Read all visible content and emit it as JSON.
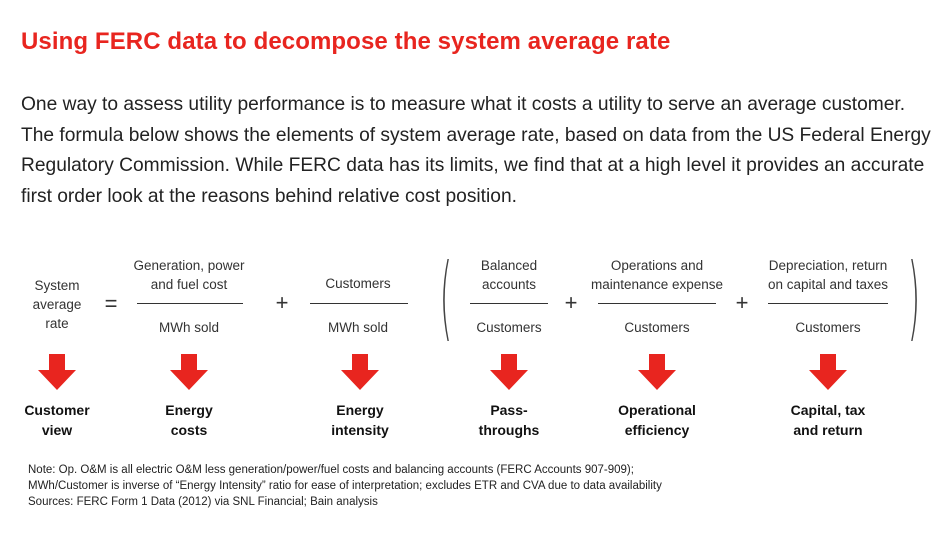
{
  "title": "Using FERC data to decompose the system average rate",
  "intro": "One way to assess utility performance is to measure what it costs a utility to serve an average customer. The formula below shows the elements of system average rate, based on data from the US Federal Energy Regulatory Commission. While FERC data has its limits, we find that at a high level it provides an accurate first order look at the reasons behind relative cost position.",
  "formula": {
    "lhs": [
      "System",
      "average",
      "rate"
    ],
    "equals": "=",
    "plus": "+",
    "terms": [
      {
        "numerator": [
          "Generation, power",
          "and fuel cost"
        ],
        "denominator": "MWh sold"
      },
      {
        "numerator": [
          "Customers"
        ],
        "denominator": "MWh sold"
      },
      {
        "numerator": [
          "Balanced",
          "accounts"
        ],
        "denominator": "Customers"
      },
      {
        "numerator": [
          "Operations and",
          "maintenance expense"
        ],
        "denominator": "Customers"
      },
      {
        "numerator": [
          "Depreciation, return",
          "on capital and taxes"
        ],
        "denominator": "Customers"
      }
    ]
  },
  "categories": [
    [
      "Customer",
      "view"
    ],
    [
      "Energy",
      "costs"
    ],
    [
      "Energy",
      "intensity"
    ],
    [
      "Pass-",
      "throughs"
    ],
    [
      "Operational",
      "efficiency"
    ],
    [
      "Capital, tax",
      "and return"
    ]
  ],
  "arrow_color": "#e8251f",
  "notes": [
    "Note: Op. O&M is all electric O&M less generation/power/fuel costs and balancing accounts (FERC Accounts 907-909);",
    "MWh/Customer is inverse of “Energy Intensity” ratio for ease of interpretation; excludes ETR and CVA due to data availability",
    "Sources: FERC Form 1 Data (2012) via SNL Financial; Bain analysis"
  ]
}
